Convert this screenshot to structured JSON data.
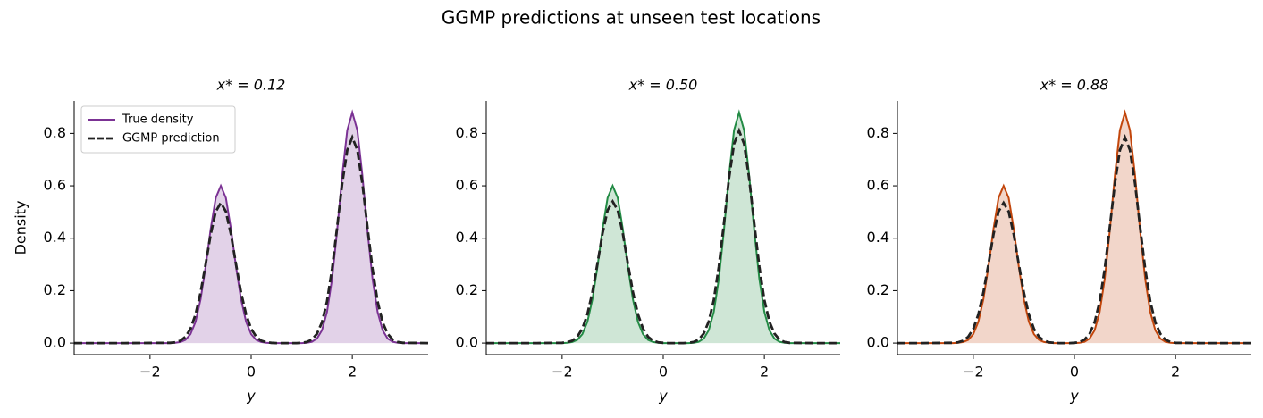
{
  "title": "GGMP predictions at unseen test locations",
  "chart_data": [
    {
      "type": "line",
      "title": "x* = 0.12",
      "xlabel": "y",
      "ylabel": "Density",
      "fill_first": true,
      "legend": "upper left",
      "xlim": [
        -3.5,
        3.5
      ],
      "ylim": [
        -0.044,
        0.924
      ],
      "xticks": [
        {
          "value": -2,
          "label": "−2"
        },
        0,
        2
      ],
      "yticks": [
        {
          "value": 0,
          "label": "0.0"
        },
        0.2,
        0.4,
        0.6,
        0.8
      ],
      "x": [
        -3.5,
        -2.5,
        -1.6,
        -1.5,
        -1.4,
        -1.3,
        -1.2,
        -1.1,
        -1.0,
        -0.9,
        -0.8,
        -0.7,
        -0.6,
        -0.5,
        -0.4,
        -0.3,
        -0.2,
        -0.1,
        0,
        0.1,
        0.2,
        0.3,
        0.4,
        0.5,
        0.6,
        0.7,
        0.8,
        0.9,
        1.0,
        1.1,
        1.2,
        1.3,
        1.4,
        1.5,
        1.6,
        1.7,
        1.8,
        1.9,
        2.0,
        2.1,
        2.2,
        2.3,
        2.4,
        2.5,
        2.6,
        2.7,
        2.8,
        2.9,
        3.0,
        3.5
      ],
      "series": [
        {
          "name": "True density",
          "color": "#7b3294",
          "dash": false,
          "values": [
            0,
            0,
            0,
            0.001,
            0.004,
            0.012,
            0.034,
            0.081,
            0.167,
            0.292,
            0.436,
            0.554,
            0.6,
            0.554,
            0.436,
            0.292,
            0.167,
            0.081,
            0.034,
            0.012,
            0.004,
            0.001,
            0,
            0,
            0,
            0,
            0,
            0,
            0,
            0.001,
            0.005,
            0.017,
            0.049,
            0.119,
            0.245,
            0.429,
            0.639,
            0.812,
            0.88,
            0.812,
            0.639,
            0.429,
            0.245,
            0.119,
            0.049,
            0.017,
            0.005,
            0.001,
            0,
            0
          ]
        },
        {
          "name": "GGMP prediction",
          "color": "#222222",
          "dash": true,
          "values": [
            0,
            0,
            0.001,
            0.003,
            0.009,
            0.024,
            0.054,
            0.109,
            0.193,
            0.301,
            0.415,
            0.502,
            0.535,
            0.502,
            0.415,
            0.301,
            0.193,
            0.109,
            0.054,
            0.024,
            0.009,
            0.003,
            0.001,
            0,
            0,
            0,
            0,
            0,
            0.001,
            0.004,
            0.013,
            0.035,
            0.079,
            0.159,
            0.283,
            0.442,
            0.608,
            0.736,
            0.785,
            0.736,
            0.608,
            0.442,
            0.283,
            0.159,
            0.079,
            0.035,
            0.013,
            0.004,
            0.001,
            0
          ]
        }
      ]
    },
    {
      "type": "line",
      "title": "x* = 0.50",
      "xlabel": "y",
      "fill_first": true,
      "xlim": [
        -3.5,
        3.5
      ],
      "ylim": [
        -0.044,
        0.924
      ],
      "xticks": [
        {
          "value": -2,
          "label": "−2"
        },
        0,
        2
      ],
      "yticks": [
        {
          "value": 0,
          "label": "0.0"
        },
        0.2,
        0.4,
        0.6,
        0.8
      ],
      "x": [
        -3.5,
        -2.5,
        -2.0,
        -1.9,
        -1.8,
        -1.7,
        -1.6,
        -1.5,
        -1.4,
        -1.3,
        -1.2,
        -1.1,
        -1.0,
        -0.9,
        -0.8,
        -0.7,
        -0.6,
        -0.5,
        -0.4,
        -0.3,
        -0.2,
        -0.1,
        0,
        0.1,
        0.2,
        0.3,
        0.4,
        0.5,
        0.6,
        0.7,
        0.8,
        0.9,
        1.0,
        1.1,
        1.2,
        1.3,
        1.4,
        1.5,
        1.6,
        1.7,
        1.8,
        1.9,
        2.0,
        2.1,
        2.2,
        2.3,
        2.4,
        2.5,
        3.0,
        3.5
      ],
      "series": [
        {
          "color": "#238b45",
          "dash": false,
          "values": [
            0,
            0,
            0,
            0.001,
            0.004,
            0.012,
            0.034,
            0.081,
            0.167,
            0.292,
            0.436,
            0.554,
            0.6,
            0.554,
            0.436,
            0.292,
            0.167,
            0.081,
            0.034,
            0.012,
            0.004,
            0.001,
            0,
            0,
            0,
            0,
            0,
            0,
            0.001,
            0.005,
            0.017,
            0.049,
            0.119,
            0.245,
            0.429,
            0.639,
            0.812,
            0.88,
            0.812,
            0.639,
            0.429,
            0.245,
            0.119,
            0.049,
            0.017,
            0.005,
            0.001,
            0,
            0,
            0
          ]
        },
        {
          "color": "#222222",
          "dash": true,
          "values": [
            0,
            0,
            0.001,
            0.003,
            0.009,
            0.024,
            0.055,
            0.11,
            0.195,
            0.304,
            0.419,
            0.507,
            0.54,
            0.507,
            0.419,
            0.304,
            0.195,
            0.11,
            0.055,
            0.024,
            0.009,
            0.003,
            0.001,
            0,
            0,
            0,
            0,
            0.001,
            0.004,
            0.013,
            0.036,
            0.082,
            0.164,
            0.292,
            0.456,
            0.627,
            0.76,
            0.81,
            0.76,
            0.627,
            0.456,
            0.292,
            0.164,
            0.082,
            0.036,
            0.013,
            0.004,
            0.001,
            0,
            0
          ]
        }
      ]
    },
    {
      "type": "line",
      "title": "x* = 0.88",
      "xlabel": "y",
      "fill_first": true,
      "xlim": [
        -3.5,
        3.5
      ],
      "ylim": [
        -0.044,
        0.924
      ],
      "xticks": [
        {
          "value": -2,
          "label": "−2"
        },
        0,
        2
      ],
      "yticks": [
        {
          "value": 0,
          "label": "0.0"
        },
        0.2,
        0.4,
        0.6,
        0.8
      ],
      "x": [
        -3.5,
        -3.0,
        -2.4,
        -2.3,
        -2.2,
        -2.1,
        -2.0,
        -1.9,
        -1.8,
        -1.7,
        -1.6,
        -1.5,
        -1.4,
        -1.3,
        -1.2,
        -1.1,
        -1.0,
        -0.9,
        -0.8,
        -0.7,
        -0.6,
        -0.5,
        -0.4,
        -0.3,
        -0.2,
        -0.1,
        0,
        0.1,
        0.2,
        0.3,
        0.4,
        0.5,
        0.6,
        0.7,
        0.8,
        0.9,
        1.0,
        1.1,
        1.2,
        1.3,
        1.4,
        1.5,
        1.6,
        1.7,
        1.8,
        1.9,
        2.0,
        2.5,
        3.0,
        3.5
      ],
      "series": [
        {
          "color": "#c2460c",
          "dash": false,
          "values": [
            0,
            0,
            0,
            0.001,
            0.004,
            0.012,
            0.034,
            0.081,
            0.167,
            0.292,
            0.436,
            0.554,
            0.6,
            0.554,
            0.436,
            0.292,
            0.167,
            0.081,
            0.034,
            0.012,
            0.004,
            0.001,
            0,
            0,
            0,
            0,
            0,
            0.001,
            0.005,
            0.017,
            0.049,
            0.119,
            0.245,
            0.429,
            0.639,
            0.812,
            0.88,
            0.812,
            0.639,
            0.429,
            0.245,
            0.119,
            0.049,
            0.017,
            0.005,
            0.001,
            0,
            0,
            0,
            0
          ]
        },
        {
          "color": "#222222",
          "dash": true,
          "values": [
            0,
            0,
            0.001,
            0.003,
            0.009,
            0.024,
            0.054,
            0.109,
            0.193,
            0.301,
            0.415,
            0.502,
            0.535,
            0.502,
            0.415,
            0.301,
            0.193,
            0.109,
            0.054,
            0.024,
            0.009,
            0.003,
            0.001,
            0,
            0,
            0,
            0.001,
            0.004,
            0.013,
            0.035,
            0.079,
            0.159,
            0.283,
            0.442,
            0.608,
            0.736,
            0.785,
            0.736,
            0.608,
            0.442,
            0.283,
            0.159,
            0.079,
            0.035,
            0.013,
            0.004,
            0.001,
            0,
            0,
            0
          ]
        }
      ]
    }
  ]
}
